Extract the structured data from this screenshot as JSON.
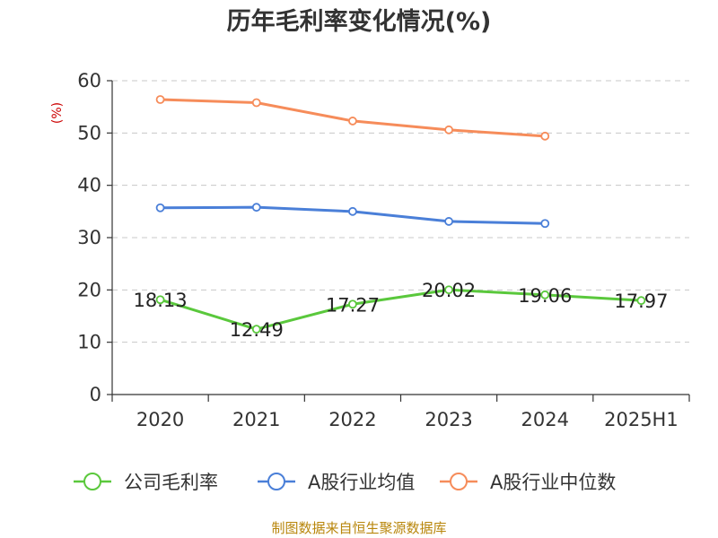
{
  "chart_data": {
    "type": "line",
    "title": "历年毛利率变化情况(%)",
    "ylabel": "(%)",
    "xlabel": "",
    "categories": [
      "2020",
      "2021",
      "2022",
      "2023",
      "2024",
      "2025H1"
    ],
    "ylim": [
      0,
      60
    ],
    "yticks": [
      0,
      10,
      20,
      30,
      40,
      50,
      60
    ],
    "grid": true,
    "legend_position": "bottom",
    "series": [
      {
        "name": "公司毛利率",
        "color": "#5ac83c",
        "values": [
          18.13,
          12.49,
          17.27,
          20.02,
          19.06,
          17.97
        ],
        "labels": [
          "18.13",
          "12.49",
          "17.27",
          "20.02",
          "19.06",
          "17.97"
        ],
        "show_labels": true
      },
      {
        "name": "A股行业均值",
        "color": "#4a7fd8",
        "values": [
          35.7,
          35.8,
          35.0,
          33.1,
          32.7,
          null
        ],
        "show_labels": false
      },
      {
        "name": "A股行业中位数",
        "color": "#f68c5a",
        "values": [
          56.4,
          55.8,
          52.3,
          50.6,
          49.4,
          null
        ],
        "show_labels": false
      }
    ]
  },
  "footer": {
    "source": "制图数据来自恒生聚源数据库"
  }
}
